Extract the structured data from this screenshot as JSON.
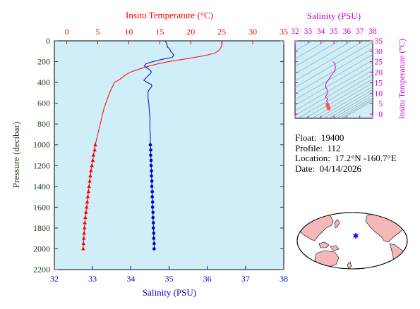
{
  "colors": {
    "temperature": "#ff0000",
    "salinity": "#0000cc",
    "salinity_ts": "#cc00cc",
    "pressure": "#1a3f1a",
    "plot_bg": "#cfeef8",
    "land": "#f4b8b8",
    "profile_point": "#ff5555",
    "float_marker": "#0000ff"
  },
  "info": {
    "float_label": "Float:",
    "float_value": "19400",
    "profile_label": "Profile:",
    "profile_value": "112",
    "location_label": "Location:",
    "location_value": "17.2°N  -160.7°E",
    "date_label": "Date:",
    "date_value": "04/14/2026"
  },
  "chart_data": [
    {
      "type": "line",
      "title": "",
      "top_axis_label": "Insitu Temperature (°C)",
      "bottom_axis_label": "Salinity (PSU)",
      "ylabel": "Pressure (decibar)",
      "temperature_ticks": [
        0,
        5,
        10,
        15,
        20,
        25,
        30,
        35
      ],
      "salinity_ticks": [
        32,
        33,
        34,
        35,
        36,
        37,
        38
      ],
      "pressure_ticks": [
        0,
        200,
        400,
        600,
        800,
        1000,
        1200,
        1400,
        1600,
        1800,
        2000,
        2200
      ],
      "tlim": [
        -2,
        35
      ],
      "slim": [
        32,
        38
      ],
      "plim": [
        0,
        2200
      ],
      "y_inverted": true,
      "grid": false,
      "series": [
        {
          "name": "Insitu Temperature (°C)",
          "color": "#ff0000",
          "marker": "none",
          "pressure": [
            5,
            20,
            40,
            60,
            80,
            100,
            120,
            140,
            160,
            180,
            190,
            200,
            220,
            240,
            260,
            280,
            300,
            320,
            340,
            360,
            380,
            400,
            450,
            500,
            550,
            600,
            650,
            700,
            750,
            800,
            850,
            900,
            950,
            1000
          ],
          "values": [
            25.0,
            25.1,
            25.0,
            24.9,
            24.7,
            24.4,
            23.8,
            22.4,
            20.6,
            18.5,
            17.4,
            16.4,
            14.8,
            13.4,
            12.3,
            11.3,
            10.3,
            9.7,
            9.2,
            8.8,
            8.3,
            7.7,
            7.3,
            6.9,
            6.6,
            6.3,
            6.0,
            5.8,
            5.6,
            5.4,
            5.2,
            5.0,
            4.8,
            4.6
          ]
        },
        {
          "name": "Insitu Temperature (°C)",
          "color": "#ff0000",
          "marker": "triangle",
          "pressure": [
            1000,
            1050,
            1100,
            1150,
            1200,
            1250,
            1300,
            1350,
            1400,
            1450,
            1500,
            1550,
            1600,
            1650,
            1700,
            1750,
            1800,
            1850,
            1900,
            1950,
            2000
          ],
          "values": [
            4.6,
            4.5,
            4.3,
            4.2,
            4.05,
            3.9,
            3.8,
            3.7,
            3.6,
            3.5,
            3.4,
            3.3,
            3.2,
            3.1,
            3.0,
            2.9,
            2.85,
            2.8,
            2.75,
            2.7,
            2.65
          ]
        },
        {
          "name": "Salinity (PSU)",
          "color": "#0000cc",
          "marker": "none",
          "pressure": [
            5,
            20,
            40,
            60,
            80,
            100,
            120,
            140,
            160,
            180,
            200,
            220,
            240,
            260,
            280,
            300,
            320,
            340,
            360,
            380,
            400,
            420,
            440,
            460,
            480,
            500,
            550,
            600,
            650,
            700,
            750,
            800,
            850,
            900,
            950,
            1000
          ],
          "values": [
            34.9,
            34.93,
            34.95,
            34.96,
            35.02,
            35.04,
            35.09,
            35.12,
            35.08,
            34.8,
            34.58,
            34.4,
            34.35,
            34.42,
            34.5,
            34.54,
            34.5,
            34.44,
            34.39,
            34.34,
            34.42,
            34.54,
            34.55,
            34.5,
            34.46,
            34.45,
            34.45,
            34.47,
            34.48,
            34.49,
            34.5,
            34.5,
            34.5,
            34.51,
            34.51,
            34.51
          ]
        },
        {
          "name": "Salinity (PSU)",
          "color": "#0000cc",
          "marker": "circle",
          "pressure": [
            1000,
            1050,
            1100,
            1150,
            1200,
            1250,
            1300,
            1350,
            1400,
            1450,
            1500,
            1550,
            1600,
            1650,
            1700,
            1750,
            1800,
            1850,
            1900,
            1950,
            2000
          ],
          "values": [
            34.51,
            34.52,
            34.52,
            34.53,
            34.53,
            34.54,
            34.54,
            34.55,
            34.55,
            34.56,
            34.56,
            34.57,
            34.57,
            34.58,
            34.58,
            34.59,
            34.59,
            34.6,
            34.6,
            34.61,
            34.61
          ]
        }
      ]
    },
    {
      "type": "scatter",
      "title": "",
      "top_axis_label": "Salinity (PSU)",
      "right_axis_label": "Insitu Temperature (°C)",
      "x_ticks": [
        32,
        33,
        34,
        35,
        36,
        37,
        38
      ],
      "y_ticks": [
        0,
        5,
        10,
        15,
        20,
        25,
        30,
        35
      ],
      "xlim": [
        32,
        38
      ],
      "ylim": [
        -2,
        35
      ],
      "density_contours": true,
      "series": [
        {
          "name": "",
          "color": "#cc00cc",
          "salinity": [
            34.9,
            34.93,
            34.96,
            35.04,
            35.09,
            35.12,
            35.08,
            34.8,
            34.58,
            34.4,
            34.35,
            34.42,
            34.5,
            34.54,
            34.5,
            34.44,
            34.39,
            34.34,
            34.42,
            34.54,
            34.5,
            34.46,
            34.45,
            34.47,
            34.49,
            34.5,
            34.51
          ],
          "temperature": [
            25.0,
            25.0,
            24.9,
            24.4,
            23.8,
            22.4,
            20.6,
            18.5,
            16.4,
            14.8,
            13.4,
            12.3,
            11.3,
            10.3,
            9.7,
            9.2,
            8.8,
            8.3,
            7.7,
            7.3,
            6.9,
            6.6,
            6.3,
            6.0,
            5.6,
            5.2,
            4.6
          ]
        },
        {
          "name": "",
          "color": "#ff5555",
          "marker": "circle",
          "salinity": [
            34.51,
            34.52,
            34.53,
            34.54,
            34.55,
            34.56,
            34.57,
            34.58,
            34.59,
            34.6,
            34.61
          ],
          "temperature": [
            4.6,
            4.3,
            4.05,
            3.8,
            3.6,
            3.4,
            3.2,
            3.0,
            2.85,
            2.75,
            2.65
          ]
        }
      ]
    }
  ],
  "map": {
    "float_lat": 17.2,
    "float_lon": -160.7
  }
}
